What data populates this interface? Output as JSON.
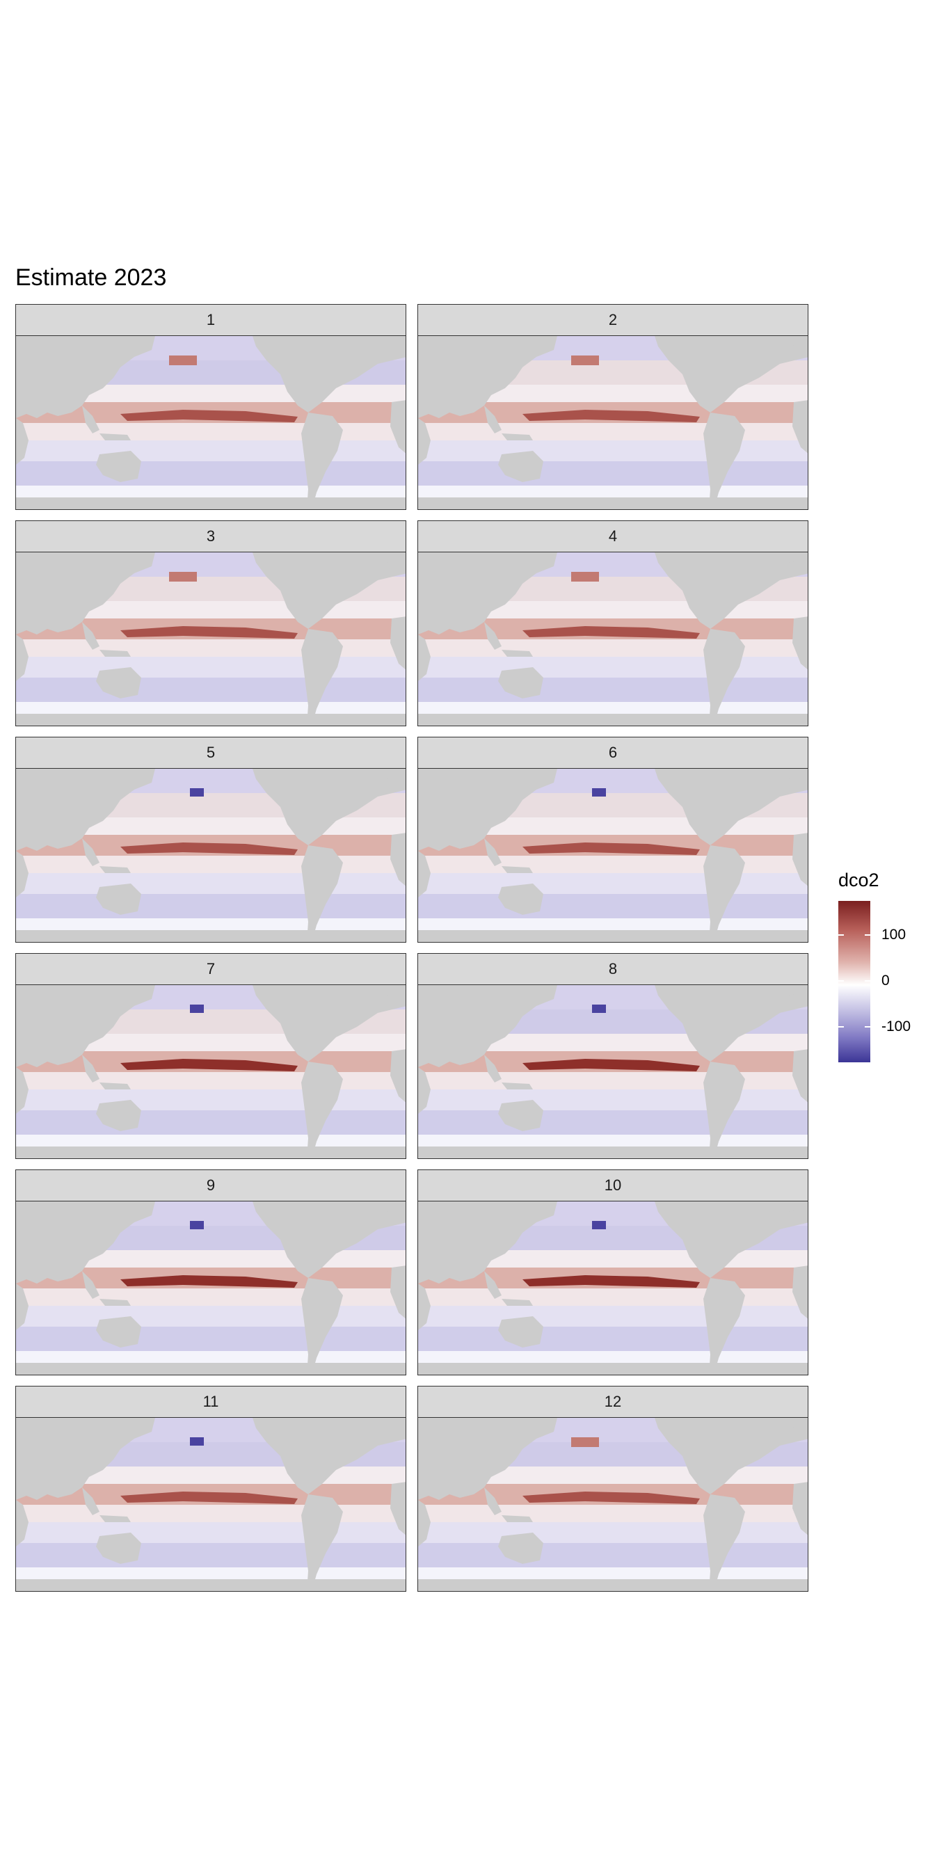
{
  "chart_data": {
    "type": "heatmap",
    "title": "Estimate 2023",
    "facet_variable": "month",
    "panels": [
      {
        "label": "1"
      },
      {
        "label": "2"
      },
      {
        "label": "3"
      },
      {
        "label": "4"
      },
      {
        "label": "5"
      },
      {
        "label": "6"
      },
      {
        "label": "7"
      },
      {
        "label": "8"
      },
      {
        "label": "9"
      },
      {
        "label": "10"
      },
      {
        "label": "11"
      },
      {
        "label": "12"
      }
    ],
    "legend": {
      "title": "dco2",
      "ticks": [
        "100",
        "0",
        "-100"
      ],
      "range": [
        -150,
        150
      ],
      "colors": {
        "high": "#7a1f1f",
        "mid": "#ffffff",
        "low": "#3b3596"
      }
    },
    "land_color": "#cccccc",
    "missing_color": "#ffffff"
  }
}
